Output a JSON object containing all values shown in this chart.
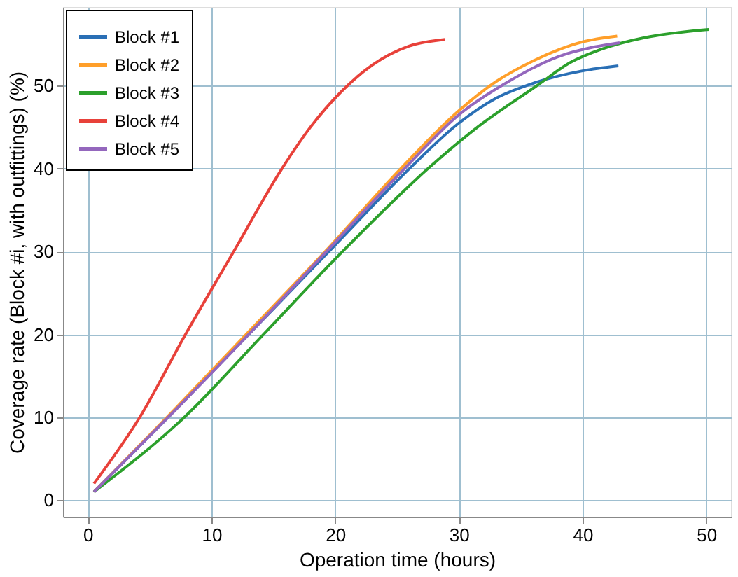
{
  "chart_data": {
    "type": "line",
    "xlabel": "Operation time (hours)",
    "ylabel": "Coverage rate (Block #i, with outfittings)  (%)",
    "xlim": [
      -2,
      52
    ],
    "ylim": [
      -2,
      59.5
    ],
    "xticks": [
      0,
      10,
      20,
      30,
      40,
      50
    ],
    "yticks": [
      0,
      10,
      20,
      30,
      40,
      50
    ],
    "grid": true,
    "legend": "top left",
    "line_style": "solid",
    "marker": "none",
    "series": [
      {
        "name": "Block #1",
        "color": "#2a6fb5",
        "x": [
          0.5,
          6.5,
          13,
          19.5,
          26,
          30,
          33,
          36,
          40,
          42.9
        ],
        "values": [
          1,
          10,
          20,
          30,
          40,
          45.5,
          48.5,
          50.3,
          51.8,
          52.4
        ]
      },
      {
        "name": "Block #2",
        "color": "#ff9f2a",
        "x": [
          0.5,
          6.4,
          12.8,
          19.2,
          25.3,
          30,
          33,
          36,
          40,
          42.8
        ],
        "values": [
          1,
          10,
          20,
          30,
          40,
          47,
          50.5,
          53,
          55.3,
          56
        ]
      },
      {
        "name": "Block #3",
        "color": "#2ca02c",
        "x": [
          0.5,
          7.8,
          14.2,
          20.6,
          27.5,
          31.5,
          36.3,
          39,
          41.5,
          45,
          50.2
        ],
        "values": [
          1,
          10,
          20,
          30,
          40,
          45,
          50,
          52.8,
          54.4,
          55.8,
          56.8
        ]
      },
      {
        "name": "Block #4",
        "color": "#e8413a",
        "x": [
          0.5,
          4.2,
          7.9,
          11.8,
          15.7,
          18,
          20.5,
          23,
          26,
          28.9
        ],
        "values": [
          2,
          10,
          20,
          30,
          40,
          45,
          49.3,
          52.5,
          54.8,
          55.6
        ]
      },
      {
        "name": "Block #5",
        "color": "#9467bd",
        "x": [
          0.5,
          6.5,
          13,
          19.3,
          25.6,
          30,
          34,
          38,
          41,
          43
        ],
        "values": [
          1,
          10,
          20,
          30,
          40,
          46.5,
          50.5,
          53.5,
          54.7,
          55.2
        ]
      }
    ]
  }
}
